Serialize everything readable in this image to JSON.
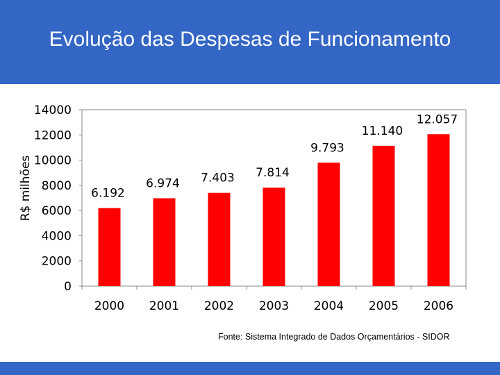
{
  "title": "Evolução das Despesas de Funcionamento",
  "source": "Fonte: Sistema Integrado de Dados Orçamentários - SIDOR",
  "colors": {
    "header": "#3366c5",
    "bar": "#ff0000"
  },
  "chart_data": {
    "type": "bar",
    "title": "",
    "xlabel": "",
    "ylabel": "R$ milhões",
    "categories": [
      "2000",
      "2001",
      "2002",
      "2003",
      "2004",
      "2005",
      "2006"
    ],
    "values": [
      6192,
      6974,
      7403,
      7814,
      9793,
      11140,
      12057
    ],
    "data_labels": [
      "6.192",
      "6.974",
      "7.403",
      "7.814",
      "9.793",
      "11.140",
      "12.057"
    ],
    "ylim": [
      0,
      14000
    ],
    "yticks": [
      0,
      2000,
      4000,
      6000,
      8000,
      10000,
      12000,
      14000
    ],
    "yticklabels": [
      "0",
      "2000",
      "4000",
      "6000",
      "8000",
      "10000",
      "12000",
      "14000"
    ],
    "grid": false,
    "legend": "none"
  }
}
